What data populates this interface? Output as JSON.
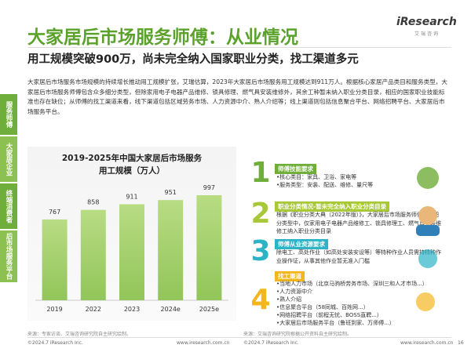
{
  "header": {
    "title": "大家居后市场服务师傅：从业情况",
    "logo": "iResearch",
    "logo_sub": "艾瑞咨询",
    "subtitle": "用工规模突破900万，尚未完全纳入国家职业分类，找工渠道多元"
  },
  "paragraph": "大家居后市场服务市场规模的持续增长推动用工规模扩张，艾瑞估算，2023年大家居后市场服务用工规模达到911万人。根据核心家居产品类目和服务类型，大家居后市场服务师傅包含众多细分类型，但除家用电子电器产品维修、锁具修理、燃气具安装维修外，其余工种暂未纳入职业分类目录，相应的国家职业技能标准也存在缺位；从师傅的找工渠道来看，线下渠道包括区域劳务市场、人力资源中介、熟人介绍等；线上渠道则包括信息聚合平台、网络招聘平台、大家居后市场服务平台。",
  "sidebar": [
    "服务师傅",
    "大家居企业",
    "终端消费者",
    "后市场服务平台"
  ],
  "chart_data": {
    "type": "bar",
    "title": "2019-2025年中国大家居后市场服务",
    "subtitle": "用工规模（万人）",
    "categories": [
      "2019",
      "2022",
      "2023",
      "2024e",
      "2025e"
    ],
    "values": [
      767,
      858,
      911,
      951,
      997
    ],
    "color": "#a9d46f"
  },
  "items": [
    {
      "number": "1",
      "heading": "师傅技能要求",
      "lines": [
        "•核心类目：家具、卫浴、家电等",
        "•服务类型：安装、配送、维修、量尺等"
      ]
    },
    {
      "number": "2",
      "heading": "职业分类情况-暂未完全纳入职业分类目录",
      "lines": [
        "根据《职业分类大典（2022年版）》，大家居后市场服务师傅众多细分类型中，仅家用电子电器产品维修工、锁具修理工、燃气具安装维修工纳入职业分类目录"
      ]
    },
    {
      "number": "3",
      "heading": "师傅从业资源要求",
      "lines": [
        "除电工、高处作业（如高处安装安设等）等特种作业人员需持特种作业操作证，从事其他作业暂无准入门槛"
      ]
    },
    {
      "number": "4",
      "heading": "找工渠道",
      "lines": [
        "•当地人力市场（北京马驹桥劳务市场、深圳三和人才市场...）",
        "•人力资源中介",
        "•熟人介绍",
        "•信息聚合平台（58同城、百姓网...）",
        "•网络招聘平台（前程无忧、BOSS直聘...）",
        "•大家居后市场服务平台（鲁班到家、万师傅...）"
      ]
    }
  ],
  "source_left": "来源：专家访谈、艾瑞咨询研究院自主研究绘制。",
  "source_right": "来源：艾瑞咨询研究院根据公开资料自主研究绘制。",
  "footer": {
    "copyright_left": "©2024.7 iResearch Inc.",
    "url_left": "www.iresearch.com.cn",
    "copyright_right": "©2024.7 iResearch Inc.",
    "url_right": "www.iresearch.com.cn",
    "page": "16"
  }
}
